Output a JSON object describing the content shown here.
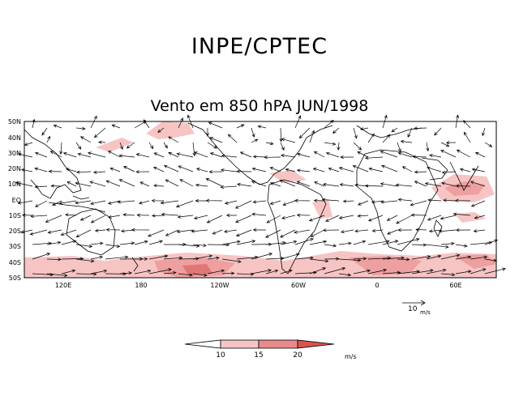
{
  "header": {
    "title": "INPE/CPTEC"
  },
  "map": {
    "title": "Vento em 850 hPA JUN/1998",
    "lat_labels": [
      "50N",
      "40N",
      "30N",
      "20N",
      "10N",
      "EQ",
      "10S",
      "20S",
      "30S",
      "40S",
      "50S"
    ],
    "lon_labels": [
      "120E",
      "180",
      "120W",
      "60W",
      "0",
      "60E"
    ]
  },
  "reference_vector": {
    "value": "10",
    "unit": "m/s"
  },
  "colorbar": {
    "ticks": [
      "10",
      "15",
      "20"
    ],
    "unit": "m/s",
    "colors": [
      "#ffffff",
      "#f7c4c4",
      "#e98a8a",
      "#d9534f"
    ]
  },
  "colors": {
    "shade_light": "#f7c4c4",
    "shade_mid": "#ee9f9f",
    "shade_dark": "#e07676",
    "coast": "#000000"
  }
}
